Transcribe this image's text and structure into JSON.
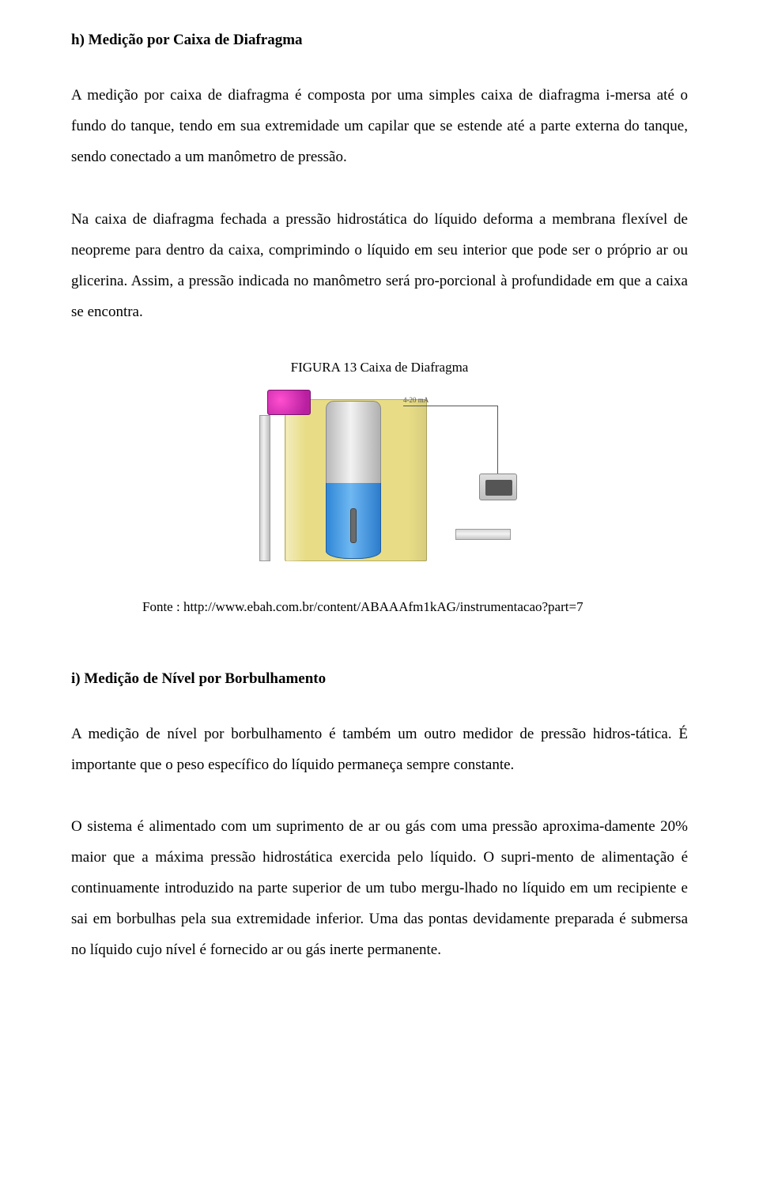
{
  "section_h": {
    "title": "h) Medição por Caixa de Diafragma",
    "p1": "A medição por caixa de diafragma é composta por uma simples caixa de diafragma i-mersa até o fundo do tanque, tendo em sua extremidade um capilar que se estende até a parte externa do tanque, sendo conectado a um manômetro de pressão.",
    "p2": "Na caixa de diafragma fechada a pressão hidrostática do líquido deforma a membrana flexível de neopreme para dentro da caixa, comprimindo o líquido em seu interior que pode ser o próprio ar ou glicerina. Assim, a pressão indicada no manômetro será pro-porcional à profundidade em que a caixa se encontra.",
    "figure_caption": "FIGURA 13 Caixa de Diafragma",
    "diagram": {
      "tank_color": "#e8dd86",
      "liquid_color": "#3a8ed8",
      "tube_color": "#d0d0d0",
      "label": "4-20 mA"
    },
    "source": "Fonte : http://www.ebah.com.br/content/ABAAAfm1kAG/instrumentacao?part=7"
  },
  "section_i": {
    "title": "i) Medição de Nível por Borbulhamento",
    "p1": "A medição de nível por borbulhamento é também um outro medidor de pressão hidros-tática. É importante que o peso específico do líquido permaneça sempre constante.",
    "p2": "O sistema é alimentado com um suprimento de ar ou gás com uma pressão aproxima-damente 20% maior que a máxima pressão hidrostática exercida pelo líquido. O supri-mento de alimentação é continuamente introduzido na parte superior de um tubo mergu-lhado no líquido em um recipiente e sai em borbulhas pela sua extremidade inferior. Uma das pontas devidamente preparada é submersa no líquido cujo nível é fornecido ar ou gás inerte permanente."
  }
}
